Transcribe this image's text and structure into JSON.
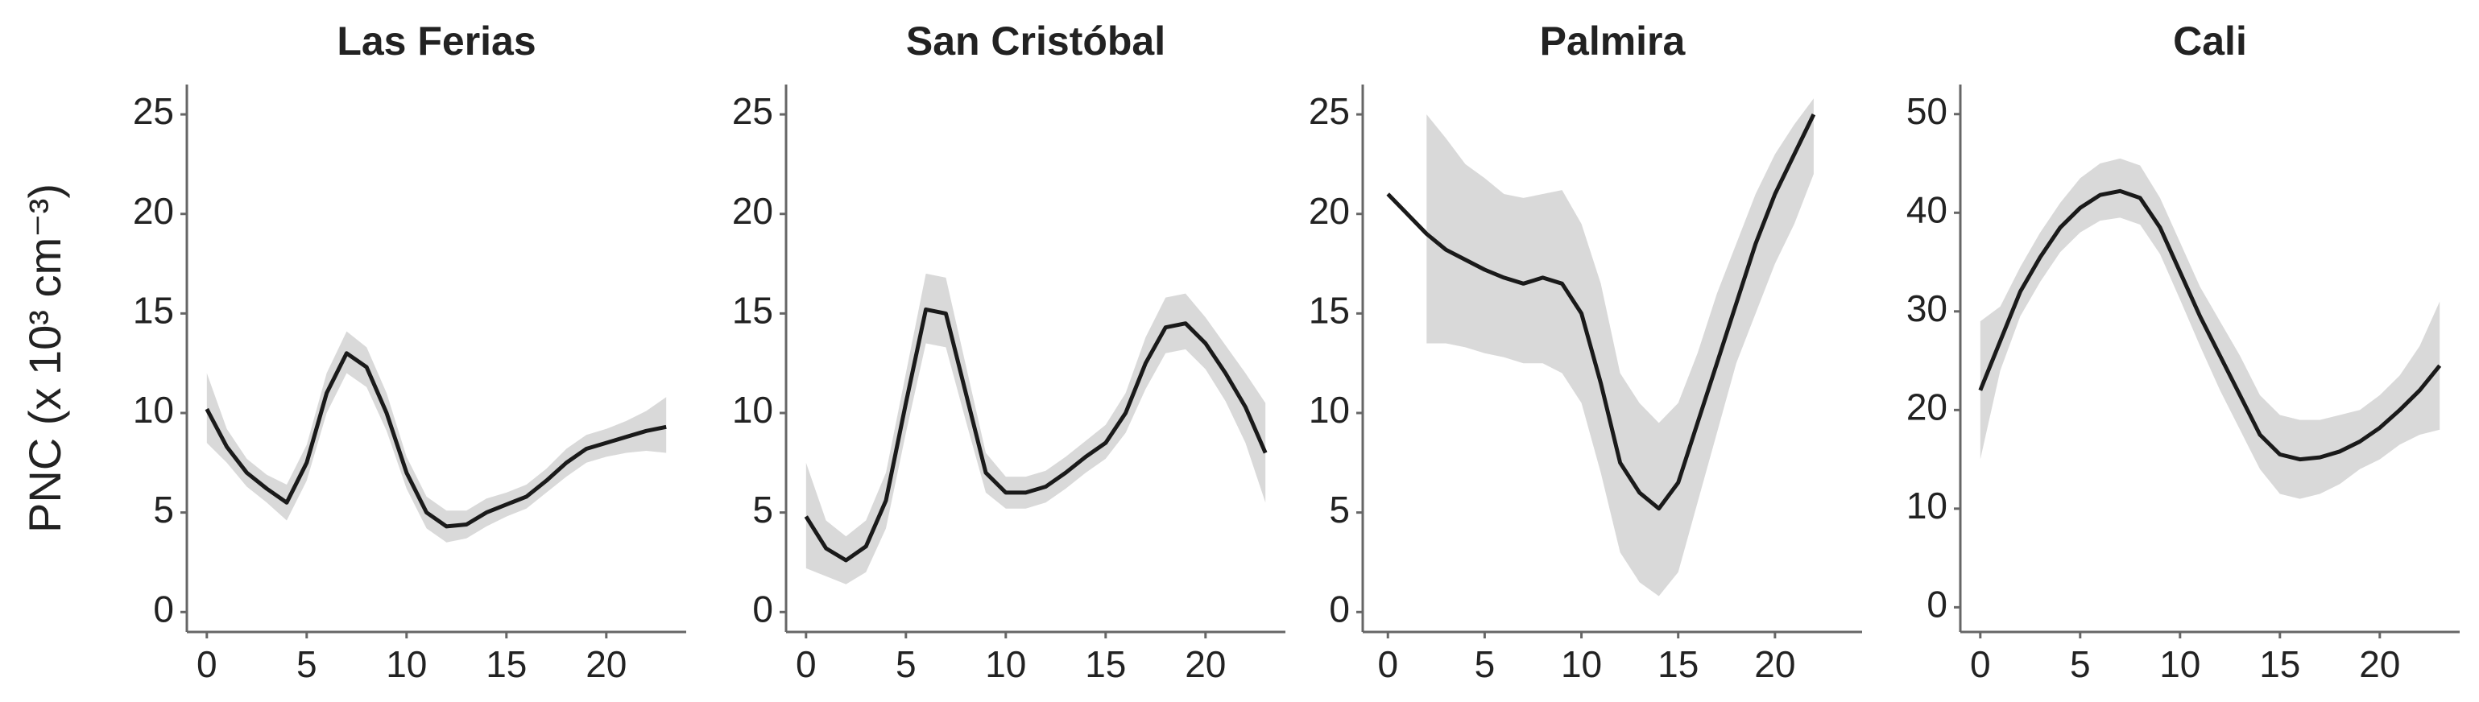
{
  "y_label": "PNC (x 10³ cm⁻³)",
  "chart_data": [
    {
      "type": "line",
      "title": "Las Ferias",
      "x": [
        0,
        1,
        2,
        3,
        4,
        5,
        6,
        7,
        8,
        9,
        10,
        11,
        12,
        13,
        14,
        15,
        16,
        17,
        18,
        19,
        20,
        21,
        22,
        23
      ],
      "series": [
        {
          "color": "#1a1a1a",
          "band_color": "#d9d9d9",
          "values": [
            10.2,
            8.3,
            7.0,
            6.2,
            5.5,
            7.5,
            11.0,
            13.0,
            12.3,
            10.0,
            7.0,
            5.0,
            4.3,
            4.4,
            5.0,
            5.4,
            5.8,
            6.6,
            7.5,
            8.2,
            8.5,
            8.8,
            9.1,
            9.3
          ],
          "lower": [
            8.5,
            7.5,
            6.3,
            5.5,
            4.6,
            6.6,
            10.0,
            12.0,
            11.3,
            9.1,
            6.2,
            4.2,
            3.5,
            3.7,
            4.3,
            4.8,
            5.2,
            6.0,
            6.8,
            7.5,
            7.8,
            8.0,
            8.1,
            8.0
          ],
          "upper": [
            12.0,
            9.2,
            7.7,
            6.9,
            6.4,
            8.4,
            12.0,
            14.1,
            13.3,
            11.0,
            7.8,
            5.8,
            5.1,
            5.1,
            5.7,
            6.0,
            6.4,
            7.2,
            8.2,
            8.9,
            9.2,
            9.6,
            10.1,
            10.8
          ]
        }
      ],
      "xlim": [
        -1,
        24
      ],
      "ylim": [
        -1,
        26.5
      ],
      "xticks": [
        0,
        5,
        10,
        15,
        20
      ],
      "yticks": [
        0,
        5,
        10,
        15,
        20,
        25
      ]
    },
    {
      "type": "line",
      "title": "San Cristóbal",
      "x": [
        0,
        1,
        2,
        3,
        4,
        5,
        6,
        7,
        8,
        9,
        10,
        11,
        12,
        13,
        14,
        15,
        16,
        17,
        18,
        19,
        20,
        21,
        22,
        23
      ],
      "series": [
        {
          "color": "#1a1a1a",
          "band_color": "#d9d9d9",
          "values": [
            4.8,
            3.2,
            2.6,
            3.3,
            5.6,
            10.5,
            15.2,
            15.0,
            11.0,
            7.0,
            6.0,
            6.0,
            6.3,
            7.0,
            7.8,
            8.5,
            10.0,
            12.5,
            14.3,
            14.5,
            13.5,
            12.0,
            10.3,
            8.0
          ],
          "lower": [
            2.2,
            1.8,
            1.4,
            2.0,
            4.2,
            9.0,
            13.5,
            13.3,
            9.6,
            6.0,
            5.2,
            5.2,
            5.5,
            6.2,
            7.0,
            7.7,
            9.0,
            11.2,
            13.0,
            13.2,
            12.2,
            10.6,
            8.5,
            5.5
          ],
          "upper": [
            7.5,
            4.6,
            3.8,
            4.6,
            7.0,
            12.0,
            17.0,
            16.8,
            12.4,
            8.0,
            6.8,
            6.8,
            7.1,
            7.8,
            8.6,
            9.4,
            11.0,
            13.8,
            15.8,
            16.0,
            14.8,
            13.4,
            12.0,
            10.5
          ]
        }
      ],
      "xlim": [
        -1,
        24
      ],
      "ylim": [
        -1,
        26.5
      ],
      "xticks": [
        0,
        5,
        10,
        15,
        20
      ],
      "yticks": [
        0,
        5,
        10,
        15,
        20,
        25
      ]
    },
    {
      "type": "line",
      "title": "Palmira",
      "x": [
        0,
        1,
        2,
        3,
        4,
        5,
        6,
        7,
        8,
        9,
        10,
        11,
        12,
        13,
        14,
        15,
        16,
        17,
        18,
        19,
        20,
        21,
        22
      ],
      "series": [
        {
          "color": "#1a1a1a",
          "band_color": "#d9d9d9",
          "values": [
            21.0,
            20.0,
            19.0,
            18.2,
            17.7,
            17.2,
            16.8,
            16.5,
            16.8,
            16.5,
            15.0,
            11.5,
            7.5,
            6.0,
            5.2,
            6.5,
            9.5,
            12.5,
            15.5,
            18.5,
            21.0,
            23.0,
            25.0
          ],
          "lower": [
            null,
            null,
            13.5,
            13.5,
            13.3,
            13.0,
            12.8,
            12.5,
            12.5,
            12.0,
            10.5,
            7.0,
            3.0,
            1.5,
            0.8,
            2.0,
            5.5,
            9.0,
            12.5,
            15.0,
            17.5,
            19.5,
            22.0
          ],
          "upper": [
            null,
            null,
            25.0,
            23.8,
            22.5,
            21.8,
            21.0,
            20.8,
            21.0,
            21.2,
            19.5,
            16.5,
            12.0,
            10.5,
            9.5,
            10.5,
            13.0,
            16.0,
            18.5,
            21.0,
            23.0,
            24.5,
            25.8
          ]
        }
      ],
      "xlim": [
        -1.3,
        24.5
      ],
      "ylim": [
        -1,
        26.5
      ],
      "xticks": [
        0,
        5,
        10,
        15,
        20
      ],
      "yticks": [
        0,
        5,
        10,
        15,
        20,
        25
      ]
    },
    {
      "type": "line",
      "title": "Cali",
      "x": [
        0,
        1,
        2,
        3,
        4,
        5,
        6,
        7,
        8,
        9,
        10,
        11,
        12,
        13,
        14,
        15,
        16,
        17,
        18,
        19,
        20,
        21,
        22,
        23
      ],
      "series": [
        {
          "color": "#1a1a1a",
          "band_color": "#d9d9d9",
          "values": [
            22,
            27,
            32,
            35.5,
            38.5,
            40.5,
            41.8,
            42.2,
            41.5,
            38.5,
            34,
            29.5,
            25.5,
            21.5,
            17.5,
            15.5,
            15,
            15.2,
            15.8,
            16.8,
            18.2,
            20,
            22,
            24.5
          ],
          "lower": [
            15,
            24,
            29.5,
            33,
            36,
            38,
            39.2,
            39.5,
            38.8,
            35.8,
            31.2,
            26.5,
            22,
            18,
            14,
            11.5,
            11,
            11.5,
            12.5,
            14,
            15,
            16.5,
            17.5,
            18
          ],
          "upper": [
            29,
            30.5,
            34.5,
            38,
            41,
            43.5,
            45,
            45.5,
            44.8,
            41.5,
            37,
            32.5,
            29,
            25.5,
            21.5,
            19.5,
            19,
            19,
            19.5,
            20,
            21.5,
            23.5,
            26.5,
            31
          ]
        }
      ],
      "xlim": [
        -1,
        24
      ],
      "ylim": [
        -2.5,
        53
      ],
      "xticks": [
        0,
        5,
        10,
        15,
        20
      ],
      "yticks": [
        0,
        10,
        20,
        30,
        40,
        50
      ]
    }
  ]
}
